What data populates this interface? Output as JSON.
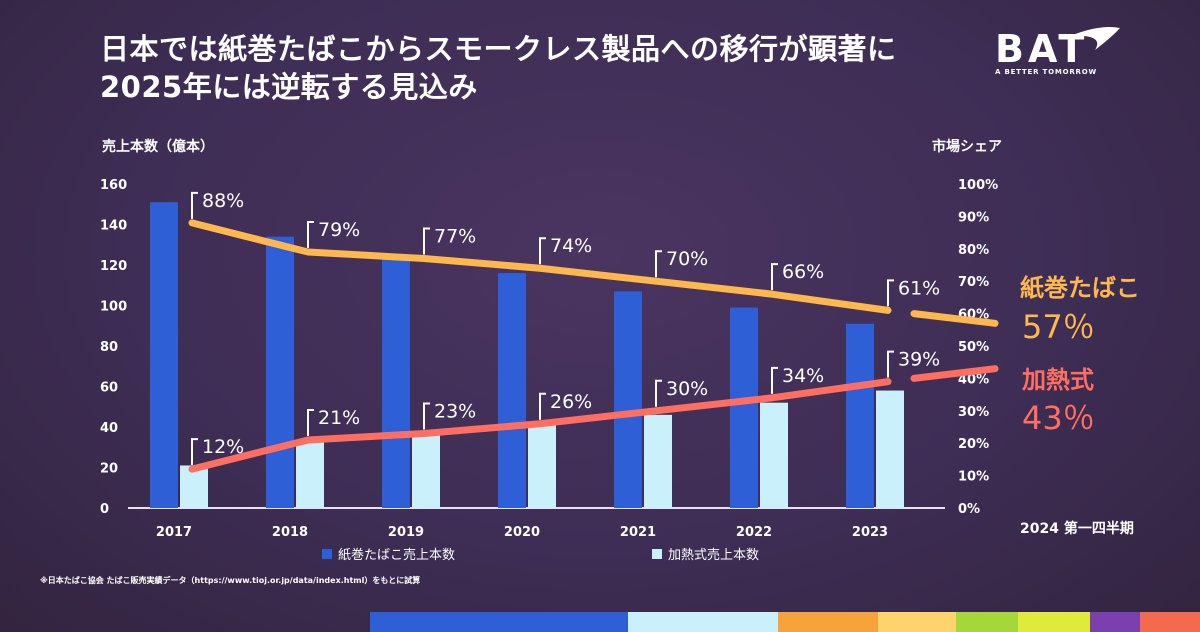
{
  "title_lines": [
    "日本では紙巻たばこからスモークレス製品への移行が顕著に",
    "2025年には逆転する見込み"
  ],
  "logo": {
    "wordmark": "BAT",
    "tagline": "A BETTER TOMORROW"
  },
  "footnote": "※日本たばこ協会 たばこ販売実績データ（https://www.tioj.or.jp/data/index.html）をもとに試算",
  "latest_period": "2024 第一四半期",
  "end_labels": {
    "cigarette": {
      "name": "紙巻たばこ",
      "value": "57％"
    },
    "heated": {
      "name": "加熱式",
      "value": "43％"
    }
  },
  "colors": {
    "background": "#3e2d55",
    "cigarette_bar": "#2f5fd6",
    "heated_bar": "#c9f0fb",
    "cigarette_line": "#ffb84d",
    "heated_line": "#ff6f61"
  },
  "bottom_strip_colors": [
    "#2f5fd6",
    "#c9f0fb",
    "#f7a33c",
    "#ffd36b",
    "#a5d63a",
    "#e0ea3a",
    "#7b3fb0",
    "#f46a4e"
  ],
  "chart_data": {
    "type": "bar+line",
    "categories": [
      "2017",
      "2018",
      "2019",
      "2020",
      "2021",
      "2022",
      "2023"
    ],
    "ylabel": "売上本数（億本）",
    "y2label": "市場シェア",
    "ylim": [
      0,
      160
    ],
    "yticks": [
      "0",
      "20",
      "40",
      "60",
      "80",
      "100",
      "120",
      "140",
      "160"
    ],
    "y2lim": [
      0,
      100
    ],
    "y2ticks": [
      "0%",
      "10%",
      "20%",
      "30%",
      "40%",
      "50%",
      "60%",
      "70%",
      "80%",
      "90%",
      "100%"
    ],
    "legend_position": "bottom",
    "series": [
      {
        "name": "紙巻たばこ売上本数",
        "type": "bar",
        "values": [
          151,
          134,
          124,
          116,
          107,
          99,
          91
        ]
      },
      {
        "name": "加熱式売上本数",
        "type": "bar",
        "values": [
          21,
          33,
          37,
          41,
          46,
          52,
          58
        ]
      },
      {
        "name": "紙巻たばこ share",
        "type": "line",
        "axis": "right",
        "values": [
          88,
          79,
          77,
          74,
          70,
          66,
          61
        ],
        "labels": [
          "88%",
          "79%",
          "77%",
          "74%",
          "70%",
          "66%",
          "61%"
        ],
        "projection": 57
      },
      {
        "name": "加熱式 share",
        "type": "line",
        "axis": "right",
        "values": [
          12,
          21,
          23,
          26,
          30,
          34,
          39
        ],
        "labels": [
          "12%",
          "21%",
          "23%",
          "26%",
          "30%",
          "34%",
          "39%"
        ],
        "projection": 43
      }
    ]
  }
}
